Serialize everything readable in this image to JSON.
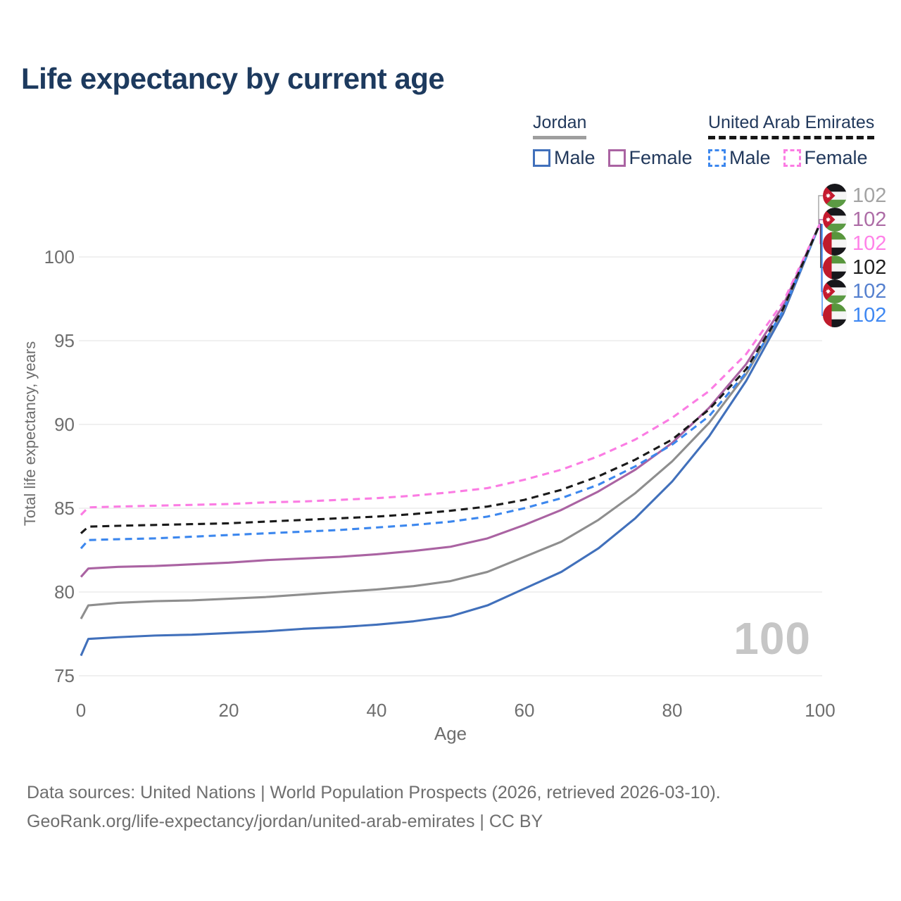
{
  "title": "Life expectancy by current age",
  "legend": {
    "groups": [
      {
        "country": "Jordan",
        "line_style": "solid",
        "underline_color": "#9e9e9e",
        "items": [
          {
            "label": "Male",
            "color": "#4170bb",
            "dashed": false
          },
          {
            "label": "Female",
            "color": "#aa63a2",
            "dashed": false
          }
        ]
      },
      {
        "country": "United Arab Emirates",
        "line_style": "dashed",
        "underline_color": "#161616",
        "items": [
          {
            "label": "Male",
            "color": "#3c87ee",
            "dashed": true
          },
          {
            "label": "Female",
            "color": "#fb7ce3",
            "dashed": true
          }
        ]
      }
    ]
  },
  "chart_data": {
    "type": "line",
    "title": "Life expectancy by current age",
    "xlabel": "Age",
    "ylabel": "Total life expectancy, years",
    "xlim": [
      0,
      100
    ],
    "ylim": [
      75,
      102.5
    ],
    "xticks": [
      0,
      20,
      40,
      60,
      80,
      100
    ],
    "yticks": [
      75,
      80,
      85,
      90,
      95,
      100
    ],
    "grid": "horizontal",
    "legend_position": "top-right",
    "ages": [
      0,
      1,
      5,
      10,
      15,
      20,
      25,
      30,
      35,
      40,
      45,
      50,
      55,
      60,
      65,
      70,
      75,
      80,
      85,
      90,
      95,
      100
    ],
    "series": [
      {
        "name": "Jordan Male",
        "country": "Jordan",
        "sex": "Male",
        "style": "solid",
        "color": "#4170bb",
        "values": [
          76.2,
          77.2,
          77.3,
          77.4,
          77.45,
          77.55,
          77.65,
          77.8,
          77.9,
          78.05,
          78.25,
          78.55,
          79.2,
          80.2,
          81.2,
          82.6,
          84.4,
          86.6,
          89.3,
          92.6,
          96.6,
          102
        ],
        "end_label": "102"
      },
      {
        "name": "Jordan Female",
        "country": "Jordan",
        "sex": "Female",
        "style": "solid",
        "color": "#aa63a2",
        "values": [
          80.9,
          81.4,
          81.5,
          81.55,
          81.65,
          81.75,
          81.9,
          82.0,
          82.1,
          82.25,
          82.45,
          82.7,
          83.2,
          84.0,
          84.9,
          86.0,
          87.3,
          88.9,
          91.0,
          93.6,
          97.1,
          102
        ],
        "end_label": "102"
      },
      {
        "name": "Jordan Both sexes",
        "country": "Jordan",
        "sex": "Both sexes",
        "style": "solid",
        "color": "#8e8e8e",
        "values": [
          78.4,
          79.2,
          79.35,
          79.45,
          79.5,
          79.6,
          79.7,
          79.85,
          80.0,
          80.15,
          80.35,
          80.65,
          81.2,
          82.1,
          83.0,
          84.3,
          85.9,
          87.8,
          90.1,
          93.0,
          96.8,
          102
        ],
        "end_label": "102"
      },
      {
        "name": "United Arab Emirates Male",
        "country": "United Arab Emirates",
        "sex": "Male",
        "style": "dashed",
        "color": "#3c87ee",
        "values": [
          82.6,
          83.1,
          83.15,
          83.2,
          83.3,
          83.4,
          83.5,
          83.6,
          83.7,
          83.85,
          84.0,
          84.2,
          84.5,
          85.0,
          85.6,
          86.4,
          87.5,
          88.8,
          90.5,
          93.1,
          96.8,
          102
        ],
        "end_label": "102"
      },
      {
        "name": "United Arab Emirates Female",
        "country": "United Arab Emirates",
        "sex": "Female",
        "style": "dashed",
        "color": "#fb7ce3",
        "values": [
          84.6,
          85.05,
          85.1,
          85.15,
          85.2,
          85.25,
          85.35,
          85.4,
          85.5,
          85.6,
          85.75,
          85.95,
          86.2,
          86.7,
          87.3,
          88.1,
          89.1,
          90.4,
          92.0,
          94.2,
          97.3,
          102
        ],
        "end_label": "102"
      },
      {
        "name": "United Arab Emirates Both sexes",
        "country": "United Arab Emirates",
        "sex": "Both sexes",
        "style": "dashed",
        "color": "#1a1a1a",
        "values": [
          83.5,
          83.9,
          83.95,
          84.0,
          84.05,
          84.1,
          84.2,
          84.3,
          84.4,
          84.5,
          84.65,
          84.85,
          85.1,
          85.5,
          86.1,
          86.9,
          87.9,
          89.1,
          90.9,
          93.3,
          96.9,
          102
        ],
        "end_label": "102"
      }
    ]
  },
  "end_labels": [
    {
      "flag": "jordan",
      "value": "102",
      "color": "#a3a3a3",
      "series": "Jordan Both sexes"
    },
    {
      "flag": "jordan",
      "value": "102",
      "color": "#ad6ca6",
      "series": "Jordan Female"
    },
    {
      "flag": "uae",
      "value": "102",
      "color": "#ff82e8",
      "series": "United Arab Emirates Female"
    },
    {
      "flag": "uae",
      "value": "102",
      "color": "#1f1f1f",
      "series": "United Arab Emirates Both sexes"
    },
    {
      "flag": "jordan",
      "value": "102",
      "color": "#5580cf",
      "series": "Jordan Male"
    },
    {
      "flag": "uae",
      "value": "102",
      "color": "#3f88f2",
      "series": "United Arab Emirates Male"
    }
  ],
  "age_indicator": "100",
  "footer": {
    "line1": "Data sources: United Nations | World Population Prospects (2026, retrieved 2026-03-10).",
    "line2": "GeoRank.org/life-expectancy/jordan/united-arab-emirates | CC BY"
  },
  "colors": {
    "title_text": "#1d3a5e",
    "axis_text": "#6e6e6e",
    "gridline": "#ebebeb",
    "watermark": "#c6c6c6",
    "flag_jordan": {
      "black": "#17171b",
      "white": "#f5f5f5",
      "green": "#5b9a43",
      "red": "#c51a2e"
    },
    "flag_uae": {
      "red": "#bf1b2c",
      "green": "#58963c",
      "white": "#f5f5f5",
      "black": "#17171b"
    }
  }
}
